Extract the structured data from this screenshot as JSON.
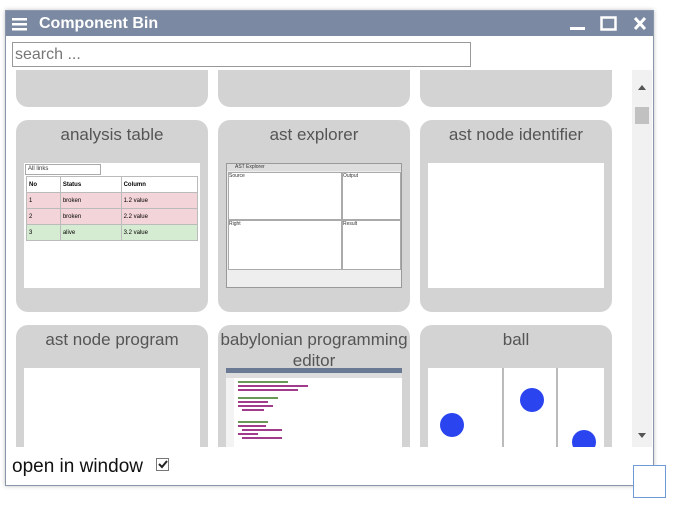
{
  "window": {
    "title": "Component Bin",
    "search_placeholder": "search ...",
    "footer_label": "open in window"
  },
  "cards": [
    {
      "title": "analysis table"
    },
    {
      "title": "ast explorer"
    },
    {
      "title": "ast node identifier"
    },
    {
      "title": "ast node program"
    },
    {
      "title": "babylonian programming editor"
    },
    {
      "title": "ball"
    }
  ],
  "analysis_table": {
    "filter": "All links",
    "columns": [
      "No",
      "Status",
      "Column"
    ],
    "rows": [
      [
        "1",
        "broken",
        "1.2 value"
      ],
      [
        "2",
        "broken",
        "2.2 value"
      ],
      [
        "3",
        "alive",
        "3.2 value"
      ]
    ]
  },
  "ast_explorer": {
    "title": "AST Explorer",
    "panes": [
      "Source",
      "Output",
      "Right",
      "Result"
    ]
  }
}
